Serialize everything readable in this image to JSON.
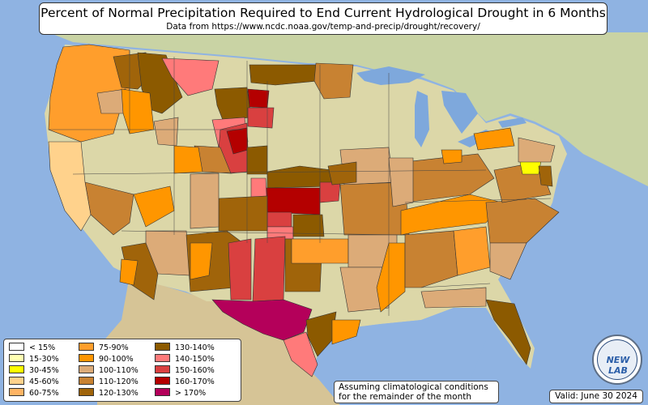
{
  "title": {
    "main": "Percent of Normal Precipitation Required to End Current Hydrological Drought in 6 Months",
    "subtitle": "Data from https://www.ncdc.noaa.gov/temp-and-precip/drought/recovery/"
  },
  "legend": {
    "items": [
      {
        "label": "< 15%",
        "color": "#ffffff"
      },
      {
        "label": "15-30%",
        "color": "#ffffb2"
      },
      {
        "label": "30-45%",
        "color": "#ffff00"
      },
      {
        "label": "45-60%",
        "color": "#ffd28c"
      },
      {
        "label": "60-75%",
        "color": "#ffb464"
      },
      {
        "label": "75-90%",
        "color": "#ff9e2c"
      },
      {
        "label": "90-100%",
        "color": "#ff9600"
      },
      {
        "label": "100-110%",
        "color": "#dcab78"
      },
      {
        "label": "110-120%",
        "color": "#c88232"
      },
      {
        "label": "120-130%",
        "color": "#a0640a"
      },
      {
        "label": "130-140%",
        "color": "#8c5a00"
      },
      {
        "label": "140-150%",
        "color": "#ff7a7a"
      },
      {
        "label": "150-160%",
        "color": "#d94040"
      },
      {
        "label": "160-170%",
        "color": "#b40000"
      },
      {
        "label": "> 170%",
        "color": "#b4005a"
      }
    ]
  },
  "note": {
    "line1": "Assuming climatological conditions",
    "line2": "for the remainder of the month"
  },
  "valid": "Valid: June 30 2024",
  "logo": {
    "text": "NEW LAB"
  },
  "colors": {
    "ocean": "#8fb3e2",
    "land": "#dcd7a8",
    "canada": "#c9d3a4",
    "mexico": "#d6c496",
    "lake": "#7ea8dc"
  }
}
